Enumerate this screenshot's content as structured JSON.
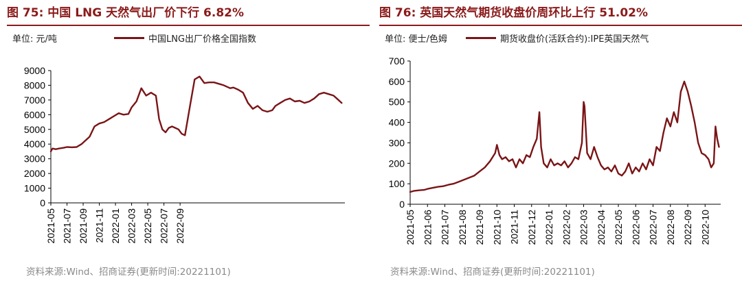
{
  "chart_data": [
    {
      "type": "line",
      "title": "图 75:  中国 LNG 天然气出厂价下行 6.82%",
      "unit_label": "单位: 元/吨",
      "legend": "中国LNG出厂价格全国指数",
      "xlabel": "",
      "ylabel": "",
      "ylim": [
        0,
        9000
      ],
      "y_ticks": [
        "0",
        "1000",
        "2000",
        "3000",
        "4000",
        "5000",
        "6000",
        "7000",
        "8000",
        "9000"
      ],
      "x_ticks": [
        "2021-05",
        "2021-07",
        "2021-09",
        "2021-11",
        "2022-01",
        "2022-03",
        "2022-05",
        "2022-07",
        "2022-09"
      ],
      "xlim": [
        0,
        18.2
      ],
      "series": [
        {
          "name": "中国LNG出厂价格全国指数",
          "color": "#7a1416",
          "x": [
            0,
            0.1,
            0.3,
            0.5,
            0.8,
            1.0,
            1.3,
            1.6,
            1.9,
            2.1,
            2.4,
            2.7,
            3.0,
            3.3,
            3.6,
            3.9,
            4.2,
            4.5,
            4.8,
            5.0,
            5.3,
            5.6,
            5.9,
            6.2,
            6.5,
            6.7,
            6.9,
            7.1,
            7.3,
            7.5,
            7.7,
            7.9,
            8.1,
            8.3,
            8.6,
            8.9,
            9.2,
            9.5,
            9.8,
            10.1,
            10.4,
            10.7,
            10.9,
            11.1,
            11.3,
            11.6,
            11.9,
            12.2,
            12.5,
            12.8,
            13.1,
            13.4,
            13.7,
            13.9,
            14.2,
            14.5,
            14.8,
            15.1,
            15.4,
            15.7,
            16.0,
            16.3,
            16.6,
            16.9,
            17.2,
            17.5,
            17.7,
            17.9,
            18.0
          ],
          "values": [
            3500,
            3700,
            3650,
            3700,
            3750,
            3800,
            3780,
            3800,
            4000,
            4200,
            4500,
            5200,
            5400,
            5500,
            5700,
            5900,
            6100,
            6000,
            6050,
            6500,
            6900,
            7800,
            7300,
            7500,
            7300,
            5700,
            5000,
            4800,
            5100,
            5200,
            5100,
            5000,
            4700,
            4600,
            6500,
            8400,
            8600,
            8150,
            8200,
            8200,
            8100,
            8000,
            7900,
            7800,
            7850,
            7700,
            7500,
            6800,
            6400,
            6600,
            6300,
            6200,
            6300,
            6600,
            6800,
            7000,
            7100,
            6900,
            6950,
            6800,
            6900,
            7100,
            7400,
            7500,
            7400,
            7300,
            7100,
            6900,
            6800
          ]
        }
      ],
      "source": "资料来源:Wind、招商证券(更新时间:20221101)"
    },
    {
      "type": "line",
      "title": "图 76:  英国天然气期货收盘价周环比上行 51.02%",
      "unit_label": "单位: 便士/色姆",
      "legend": "期货收盘价(活跃合约):IPE英国天然气",
      "xlabel": "",
      "ylabel": "",
      "ylim": [
        0,
        700
      ],
      "y_ticks": [
        "0",
        "100",
        "200",
        "300",
        "400",
        "500",
        "600",
        "700"
      ],
      "x_ticks": [
        "2021-05",
        "2021-06",
        "2021-07",
        "2021-08",
        "2021-09",
        "2021-10",
        "2021-11",
        "2021-12",
        "2022-01",
        "2022-02",
        "2022-03",
        "2022-04",
        "2022-05",
        "2022-06",
        "2022-07",
        "2022-08",
        "2022-09",
        "2022-10"
      ],
      "xlim": [
        0,
        17.9
      ],
      "series": [
        {
          "name": "期货收盘价(活跃合约):IPE英国天然气",
          "color": "#7a1416",
          "x": [
            0,
            0.2,
            0.5,
            0.8,
            1.0,
            1.3,
            1.6,
            1.9,
            2.2,
            2.5,
            2.8,
            3.1,
            3.4,
            3.7,
            4.0,
            4.3,
            4.6,
            4.9,
            5.0,
            5.15,
            5.3,
            5.5,
            5.7,
            5.9,
            6.1,
            6.3,
            6.5,
            6.7,
            6.9,
            7.1,
            7.3,
            7.45,
            7.55,
            7.7,
            7.9,
            8.1,
            8.3,
            8.5,
            8.7,
            8.9,
            9.1,
            9.3,
            9.5,
            9.7,
            9.9,
            10.0,
            10.05,
            10.2,
            10.4,
            10.6,
            10.8,
            11.0,
            11.2,
            11.4,
            11.6,
            11.8,
            12.0,
            12.2,
            12.4,
            12.6,
            12.8,
            13.0,
            13.2,
            13.4,
            13.6,
            13.8,
            14.0,
            14.2,
            14.4,
            14.6,
            14.8,
            15.0,
            15.2,
            15.4,
            15.6,
            15.8,
            16.0,
            16.2,
            16.4,
            16.6,
            16.8,
            17.0,
            17.2,
            17.35,
            17.5,
            17.6,
            17.7,
            17.8
          ],
          "values": [
            60,
            65,
            68,
            70,
            75,
            80,
            85,
            88,
            95,
            100,
            110,
            120,
            130,
            140,
            160,
            180,
            210,
            250,
            290,
            240,
            220,
            230,
            210,
            220,
            180,
            220,
            200,
            240,
            230,
            280,
            320,
            450,
            280,
            200,
            180,
            220,
            190,
            200,
            190,
            210,
            180,
            200,
            230,
            220,
            300,
            500,
            480,
            250,
            220,
            280,
            230,
            190,
            170,
            180,
            160,
            190,
            150,
            140,
            160,
            200,
            150,
            180,
            160,
            200,
            170,
            220,
            190,
            280,
            260,
            350,
            420,
            380,
            450,
            400,
            550,
            600,
            550,
            480,
            400,
            300,
            250,
            240,
            220,
            180,
            200,
            380,
            320,
            280
          ]
        }
      ],
      "source": "资料来源:Wind、招商证券(更新时间:20221101)"
    }
  ]
}
